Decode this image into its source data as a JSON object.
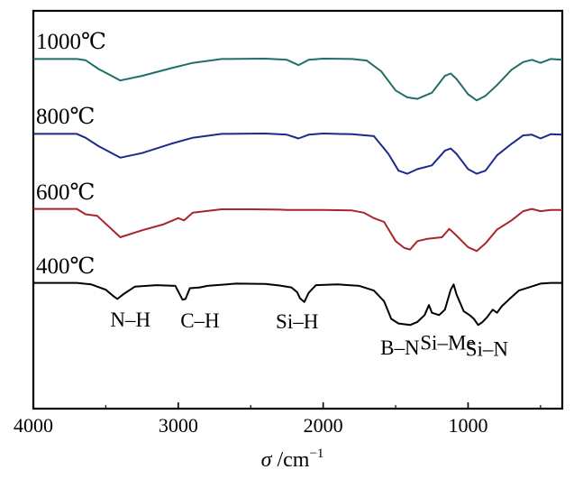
{
  "chart_data": {
    "type": "line",
    "title": "",
    "xlabel": "σ /cm⁻¹",
    "xlabel_var": "σ",
    "xlabel_unit": " /cm",
    "xlabel_sup": "−1",
    "ylabel": "",
    "xlim": [
      4000,
      350
    ],
    "x_reversed": true,
    "x_ticks": [
      "4000",
      "3000",
      "2000",
      "1000"
    ],
    "grid": false,
    "legend": "none",
    "series": [
      {
        "name": "1000℃",
        "color": "#1f6f66",
        "points": [
          [
            4000,
            0.4
          ],
          [
            3700,
            0.4
          ],
          [
            3640,
            0.55
          ],
          [
            3550,
            1.7
          ],
          [
            3400,
            3.2
          ],
          [
            3250,
            2.6
          ],
          [
            3050,
            1.6
          ],
          [
            2900,
            0.9
          ],
          [
            2700,
            0.4
          ],
          [
            2400,
            0.35
          ],
          [
            2250,
            0.5
          ],
          [
            2170,
            1.2
          ],
          [
            2100,
            0.5
          ],
          [
            2000,
            0.35
          ],
          [
            1800,
            0.4
          ],
          [
            1700,
            0.6
          ],
          [
            1600,
            2.0
          ],
          [
            1500,
            4.5
          ],
          [
            1420,
            5.4
          ],
          [
            1350,
            5.6
          ],
          [
            1250,
            4.8
          ],
          [
            1160,
            2.6
          ],
          [
            1120,
            2.3
          ],
          [
            1080,
            3.0
          ],
          [
            1000,
            5.0
          ],
          [
            940,
            5.8
          ],
          [
            880,
            5.2
          ],
          [
            800,
            3.8
          ],
          [
            700,
            1.8
          ],
          [
            620,
            0.8
          ],
          [
            560,
            0.5
          ],
          [
            500,
            0.9
          ],
          [
            430,
            0.4
          ],
          [
            350,
            0.5
          ]
        ]
      },
      {
        "name": "800℃",
        "color": "#1c2a8c",
        "points": [
          [
            4000,
            0.4
          ],
          [
            3700,
            0.4
          ],
          [
            3640,
            0.9
          ],
          [
            3550,
            2.0
          ],
          [
            3400,
            3.5
          ],
          [
            3250,
            2.9
          ],
          [
            3050,
            1.7
          ],
          [
            2900,
            0.9
          ],
          [
            2700,
            0.4
          ],
          [
            2400,
            0.35
          ],
          [
            2250,
            0.5
          ],
          [
            2170,
            1.0
          ],
          [
            2100,
            0.5
          ],
          [
            2000,
            0.35
          ],
          [
            1800,
            0.45
          ],
          [
            1650,
            0.7
          ],
          [
            1550,
            3.0
          ],
          [
            1480,
            5.2
          ],
          [
            1420,
            5.6
          ],
          [
            1350,
            5.0
          ],
          [
            1250,
            4.5
          ],
          [
            1160,
            2.6
          ],
          [
            1120,
            2.3
          ],
          [
            1080,
            3.0
          ],
          [
            1000,
            5.0
          ],
          [
            940,
            5.6
          ],
          [
            880,
            5.2
          ],
          [
            800,
            3.2
          ],
          [
            700,
            1.7
          ],
          [
            620,
            0.6
          ],
          [
            560,
            0.5
          ],
          [
            500,
            1.0
          ],
          [
            430,
            0.45
          ],
          [
            350,
            0.5
          ]
        ]
      },
      {
        "name": "600℃",
        "color": "#a8262a",
        "points": [
          [
            4000,
            0.3
          ],
          [
            3700,
            0.3
          ],
          [
            3640,
            1.0
          ],
          [
            3560,
            1.2
          ],
          [
            3400,
            4.0
          ],
          [
            3250,
            3.1
          ],
          [
            3100,
            2.3
          ],
          [
            3000,
            1.5
          ],
          [
            2960,
            1.8
          ],
          [
            2900,
            0.8
          ],
          [
            2700,
            0.35
          ],
          [
            2500,
            0.35
          ],
          [
            2300,
            0.4
          ],
          [
            2250,
            0.45
          ],
          [
            2100,
            0.45
          ],
          [
            2000,
            0.45
          ],
          [
            1800,
            0.5
          ],
          [
            1720,
            0.8
          ],
          [
            1650,
            1.5
          ],
          [
            1580,
            2.0
          ],
          [
            1500,
            4.5
          ],
          [
            1440,
            5.4
          ],
          [
            1400,
            5.6
          ],
          [
            1350,
            4.5
          ],
          [
            1280,
            4.2
          ],
          [
            1180,
            4.0
          ],
          [
            1130,
            2.9
          ],
          [
            1090,
            3.6
          ],
          [
            1000,
            5.3
          ],
          [
            940,
            5.8
          ],
          [
            880,
            4.8
          ],
          [
            800,
            3.0
          ],
          [
            700,
            1.8
          ],
          [
            620,
            0.6
          ],
          [
            560,
            0.3
          ],
          [
            500,
            0.6
          ],
          [
            430,
            0.45
          ],
          [
            350,
            0.45
          ]
        ]
      },
      {
        "name": "400℃",
        "color": "#000000",
        "points": [
          [
            4000,
            0.3
          ],
          [
            3700,
            0.3
          ],
          [
            3600,
            0.5
          ],
          [
            3500,
            1.2
          ],
          [
            3450,
            2.0
          ],
          [
            3420,
            2.4
          ],
          [
            3380,
            1.8
          ],
          [
            3300,
            0.8
          ],
          [
            3150,
            0.6
          ],
          [
            3020,
            0.7
          ],
          [
            2970,
            2.5
          ],
          [
            2950,
            2.4
          ],
          [
            2920,
            1.0
          ],
          [
            2850,
            0.9
          ],
          [
            2800,
            0.7
          ],
          [
            2600,
            0.4
          ],
          [
            2400,
            0.45
          ],
          [
            2300,
            0.65
          ],
          [
            2220,
            0.9
          ],
          [
            2180,
            1.5
          ],
          [
            2160,
            2.3
          ],
          [
            2130,
            2.8
          ],
          [
            2100,
            1.6
          ],
          [
            2050,
            0.6
          ],
          [
            1900,
            0.5
          ],
          [
            1750,
            0.7
          ],
          [
            1650,
            1.3
          ],
          [
            1580,
            2.7
          ],
          [
            1530,
            5.0
          ],
          [
            1480,
            5.6
          ],
          [
            1400,
            5.8
          ],
          [
            1350,
            5.4
          ],
          [
            1300,
            4.5
          ],
          [
            1270,
            3.2
          ],
          [
            1250,
            4.2
          ],
          [
            1200,
            4.5
          ],
          [
            1160,
            3.8
          ],
          [
            1120,
            1.2
          ],
          [
            1100,
            0.5
          ],
          [
            1080,
            1.8
          ],
          [
            1030,
            4.0
          ],
          [
            990,
            4.5
          ],
          [
            960,
            5.0
          ],
          [
            930,
            5.8
          ],
          [
            900,
            5.4
          ],
          [
            870,
            4.8
          ],
          [
            830,
            3.8
          ],
          [
            800,
            4.2
          ],
          [
            770,
            3.4
          ],
          [
            720,
            2.5
          ],
          [
            650,
            1.3
          ],
          [
            580,
            0.9
          ],
          [
            500,
            0.4
          ],
          [
            430,
            0.3
          ],
          [
            350,
            0.3
          ]
        ]
      }
    ],
    "annotations": [
      {
        "text": "N–H",
        "x": 3330,
        "y_offset": 3.2
      },
      {
        "text": "C–H",
        "x": 2850,
        "y_offset": 3.3
      },
      {
        "text": "Si–H",
        "x": 2180,
        "y_offset": 3.4
      },
      {
        "text": "B–N",
        "x": 1470,
        "y_offset": 6.8
      },
      {
        "text": "Si–Me",
        "x": 1140,
        "y_offset": 6.2
      },
      {
        "text": "Si–N",
        "x": 870,
        "y_offset": 7.0
      }
    ]
  }
}
